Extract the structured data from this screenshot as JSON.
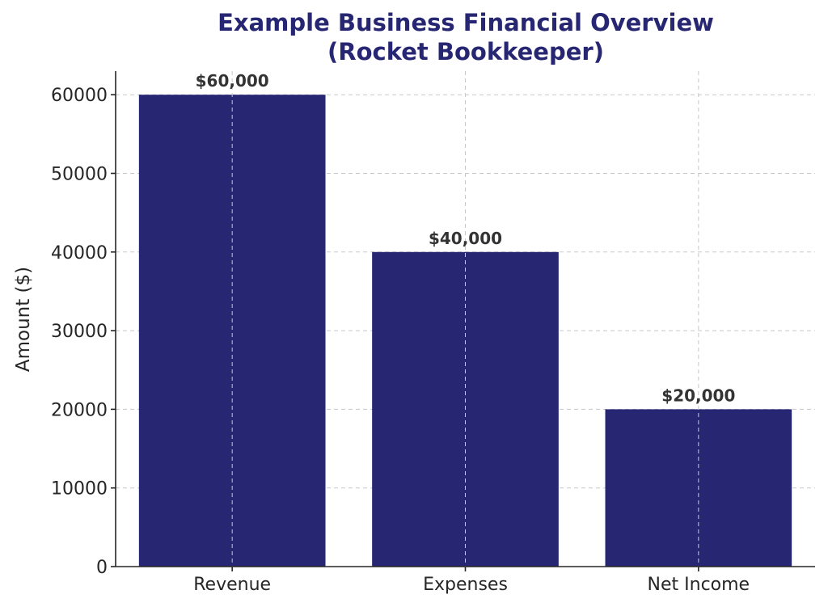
{
  "chart_data": {
    "type": "bar",
    "title_line1": "Example Business Financial Overview",
    "title_line2": "(Rocket Bookkeeper)",
    "xlabel": "",
    "ylabel": "Amount ($)",
    "categories": [
      "Revenue",
      "Expenses",
      "Net Income"
    ],
    "values": [
      60000,
      40000,
      20000
    ],
    "data_labels": [
      "$60,000",
      "$40,000",
      "$20,000"
    ],
    "ylim": [
      0,
      63000
    ],
    "yticks": [
      0,
      10000,
      20000,
      30000,
      40000,
      50000,
      60000
    ],
    "ytick_labels": [
      "0",
      "10000",
      "20000",
      "30000",
      "40000",
      "50000",
      "60000"
    ],
    "grid": true,
    "colors": {
      "bar": "#262673",
      "title": "#262673",
      "grid": "#c8c8c8",
      "text": "#262626"
    }
  }
}
